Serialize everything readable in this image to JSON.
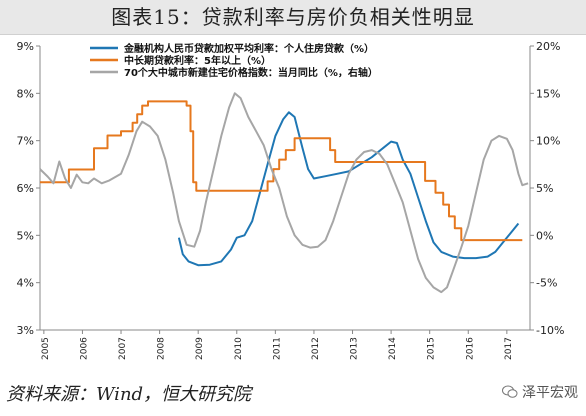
{
  "title": "图表15：贷款利率与房价负相关性明显",
  "source": "资料来源：Wind，恒大研究院",
  "watermark": "泽平宏观",
  "chart_data": {
    "type": "line",
    "x_ticks": [
      "2005",
      "2006",
      "2007",
      "2008",
      "2009",
      "2010",
      "2011",
      "2012",
      "2013",
      "2014",
      "2015",
      "2016",
      "2017"
    ],
    "y_left": {
      "min": 3,
      "max": 9,
      "ticks": [
        "3%",
        "4%",
        "5%",
        "6%",
        "7%",
        "8%",
        "9%"
      ]
    },
    "y_right": {
      "min": -10,
      "max": 20,
      "ticks": [
        "-10%",
        "-5%",
        "0%",
        "5%",
        "10%",
        "15%",
        "20%"
      ]
    },
    "grid": false,
    "legend_position": "top",
    "series": [
      {
        "name": "金融机构人民币贷款加权平均利率：个人住房贷款（%）",
        "axis": "left",
        "color": "#1f77b4",
        "points": [
          [
            2008.5,
            4.95
          ],
          [
            2008.6,
            4.6
          ],
          [
            2008.75,
            4.45
          ],
          [
            2009.0,
            4.37
          ],
          [
            2009.3,
            4.38
          ],
          [
            2009.6,
            4.45
          ],
          [
            2009.85,
            4.7
          ],
          [
            2010.0,
            4.95
          ],
          [
            2010.2,
            5.0
          ],
          [
            2010.4,
            5.3
          ],
          [
            2010.6,
            5.9
          ],
          [
            2010.8,
            6.5
          ],
          [
            2011.0,
            7.1
          ],
          [
            2011.2,
            7.45
          ],
          [
            2011.35,
            7.6
          ],
          [
            2011.5,
            7.5
          ],
          [
            2011.7,
            6.85
          ],
          [
            2011.85,
            6.4
          ],
          [
            2012.0,
            6.2
          ],
          [
            2012.3,
            6.25
          ],
          [
            2012.6,
            6.3
          ],
          [
            2012.9,
            6.35
          ],
          [
            2013.2,
            6.5
          ],
          [
            2013.5,
            6.65
          ],
          [
            2013.8,
            6.85
          ],
          [
            2014.0,
            6.98
          ],
          [
            2014.15,
            6.95
          ],
          [
            2014.3,
            6.6
          ],
          [
            2014.5,
            6.3
          ],
          [
            2014.7,
            5.8
          ],
          [
            2014.9,
            5.3
          ],
          [
            2015.1,
            4.85
          ],
          [
            2015.3,
            4.65
          ],
          [
            2015.6,
            4.55
          ],
          [
            2015.9,
            4.52
          ],
          [
            2016.2,
            4.52
          ],
          [
            2016.5,
            4.55
          ],
          [
            2016.7,
            4.65
          ],
          [
            2016.9,
            4.85
          ],
          [
            2017.1,
            5.05
          ],
          [
            2017.3,
            5.25
          ]
        ]
      },
      {
        "name": "中长期贷款利率：5年以上（%）",
        "axis": "left",
        "color": "#e6781e",
        "step": true,
        "points": [
          [
            2004.9,
            6.12
          ],
          [
            2005.65,
            6.12
          ],
          [
            2005.65,
            6.39
          ],
          [
            2006.3,
            6.39
          ],
          [
            2006.3,
            6.84
          ],
          [
            2006.65,
            6.84
          ],
          [
            2006.65,
            7.11
          ],
          [
            2007.0,
            7.11
          ],
          [
            2007.0,
            7.2
          ],
          [
            2007.3,
            7.2
          ],
          [
            2007.3,
            7.38
          ],
          [
            2007.42,
            7.38
          ],
          [
            2007.42,
            7.56
          ],
          [
            2007.55,
            7.56
          ],
          [
            2007.55,
            7.74
          ],
          [
            2007.7,
            7.74
          ],
          [
            2007.7,
            7.83
          ],
          [
            2008.7,
            7.83
          ],
          [
            2008.7,
            7.74
          ],
          [
            2008.8,
            7.74
          ],
          [
            2008.8,
            7.2
          ],
          [
            2008.87,
            7.2
          ],
          [
            2008.87,
            6.12
          ],
          [
            2008.95,
            6.12
          ],
          [
            2008.95,
            5.94
          ],
          [
            2010.8,
            5.94
          ],
          [
            2010.8,
            6.14
          ],
          [
            2010.95,
            6.14
          ],
          [
            2010.95,
            6.4
          ],
          [
            2011.1,
            6.4
          ],
          [
            2011.1,
            6.6
          ],
          [
            2011.27,
            6.6
          ],
          [
            2011.27,
            6.8
          ],
          [
            2011.5,
            6.8
          ],
          [
            2011.5,
            7.05
          ],
          [
            2012.42,
            7.05
          ],
          [
            2012.42,
            6.8
          ],
          [
            2012.55,
            6.8
          ],
          [
            2012.55,
            6.55
          ],
          [
            2014.88,
            6.55
          ],
          [
            2014.88,
            6.15
          ],
          [
            2015.15,
            6.15
          ],
          [
            2015.15,
            5.9
          ],
          [
            2015.35,
            5.9
          ],
          [
            2015.35,
            5.65
          ],
          [
            2015.5,
            5.65
          ],
          [
            2015.5,
            5.4
          ],
          [
            2015.65,
            5.4
          ],
          [
            2015.65,
            5.15
          ],
          [
            2015.82,
            5.15
          ],
          [
            2015.82,
            4.9
          ],
          [
            2017.4,
            4.9
          ]
        ]
      },
      {
        "name": "70个大中城市新建住宅价格指数：当月同比（%，右轴）",
        "axis": "right",
        "color": "#a6a6a6",
        "points": [
          [
            2004.9,
            7.0
          ],
          [
            2005.1,
            6.2
          ],
          [
            2005.25,
            5.5
          ],
          [
            2005.4,
            7.8
          ],
          [
            2005.55,
            6.0
          ],
          [
            2005.7,
            5.0
          ],
          [
            2005.85,
            6.4
          ],
          [
            2006.0,
            5.6
          ],
          [
            2006.15,
            5.5
          ],
          [
            2006.3,
            6.0
          ],
          [
            2006.5,
            5.5
          ],
          [
            2006.7,
            5.8
          ],
          [
            2007.0,
            6.5
          ],
          [
            2007.2,
            8.5
          ],
          [
            2007.4,
            11.0
          ],
          [
            2007.55,
            12.0
          ],
          [
            2007.75,
            11.5
          ],
          [
            2007.95,
            10.5
          ],
          [
            2008.15,
            8.0
          ],
          [
            2008.35,
            4.5
          ],
          [
            2008.5,
            1.5
          ],
          [
            2008.7,
            -1.0
          ],
          [
            2008.9,
            -1.2
          ],
          [
            2009.05,
            0.5
          ],
          [
            2009.2,
            3.5
          ],
          [
            2009.4,
            7.0
          ],
          [
            2009.6,
            10.5
          ],
          [
            2009.8,
            13.5
          ],
          [
            2009.95,
            15.0
          ],
          [
            2010.1,
            14.5
          ],
          [
            2010.3,
            12.5
          ],
          [
            2010.5,
            11.0
          ],
          [
            2010.7,
            9.5
          ],
          [
            2010.9,
            7.0
          ],
          [
            2011.1,
            5.0
          ],
          [
            2011.3,
            2.0
          ],
          [
            2011.5,
            0.0
          ],
          [
            2011.7,
            -1.0
          ],
          [
            2011.9,
            -1.3
          ],
          [
            2012.1,
            -1.2
          ],
          [
            2012.3,
            -0.5
          ],
          [
            2012.5,
            1.5
          ],
          [
            2012.7,
            4.0
          ],
          [
            2012.9,
            6.5
          ],
          [
            2013.1,
            8.0
          ],
          [
            2013.3,
            8.8
          ],
          [
            2013.5,
            9.0
          ],
          [
            2013.7,
            8.6
          ],
          [
            2013.9,
            7.5
          ],
          [
            2014.1,
            5.5
          ],
          [
            2014.3,
            3.5
          ],
          [
            2014.5,
            0.5
          ],
          [
            2014.7,
            -2.5
          ],
          [
            2014.9,
            -4.5
          ],
          [
            2015.1,
            -5.5
          ],
          [
            2015.3,
            -6.0
          ],
          [
            2015.45,
            -5.5
          ],
          [
            2015.6,
            -3.8
          ],
          [
            2015.8,
            -1.5
          ],
          [
            2016.0,
            1.0
          ],
          [
            2016.2,
            4.5
          ],
          [
            2016.4,
            8.0
          ],
          [
            2016.6,
            10.0
          ],
          [
            2016.8,
            10.5
          ],
          [
            2017.0,
            10.2
          ],
          [
            2017.15,
            9.0
          ],
          [
            2017.3,
            6.5
          ],
          [
            2017.4,
            5.3
          ],
          [
            2017.55,
            5.5
          ]
        ]
      }
    ]
  }
}
